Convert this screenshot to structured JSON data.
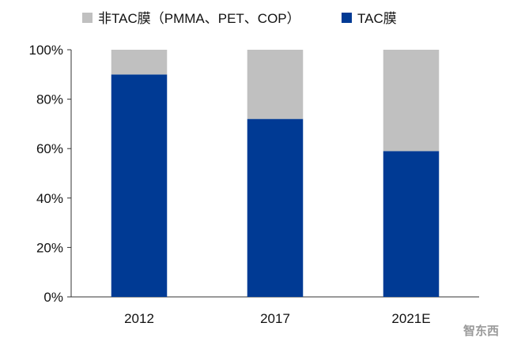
{
  "chart_data": {
    "type": "bar",
    "stacked": true,
    "categories": [
      "2012",
      "2017",
      "2021E"
    ],
    "series": [
      {
        "name": "TAC膜",
        "color": "#003a94",
        "values": [
          0.9,
          0.72,
          0.59
        ]
      },
      {
        "name": "非TAC膜（PMMA、PET、COP）",
        "color": "#c0c0c0",
        "values": [
          0.1,
          0.28,
          0.41
        ]
      }
    ],
    "ylim": [
      0,
      1
    ],
    "yticks": [
      "0%",
      "20%",
      "40%",
      "60%",
      "80%",
      "100%"
    ],
    "grid": false,
    "legend": "top"
  },
  "watermark": "智东西"
}
